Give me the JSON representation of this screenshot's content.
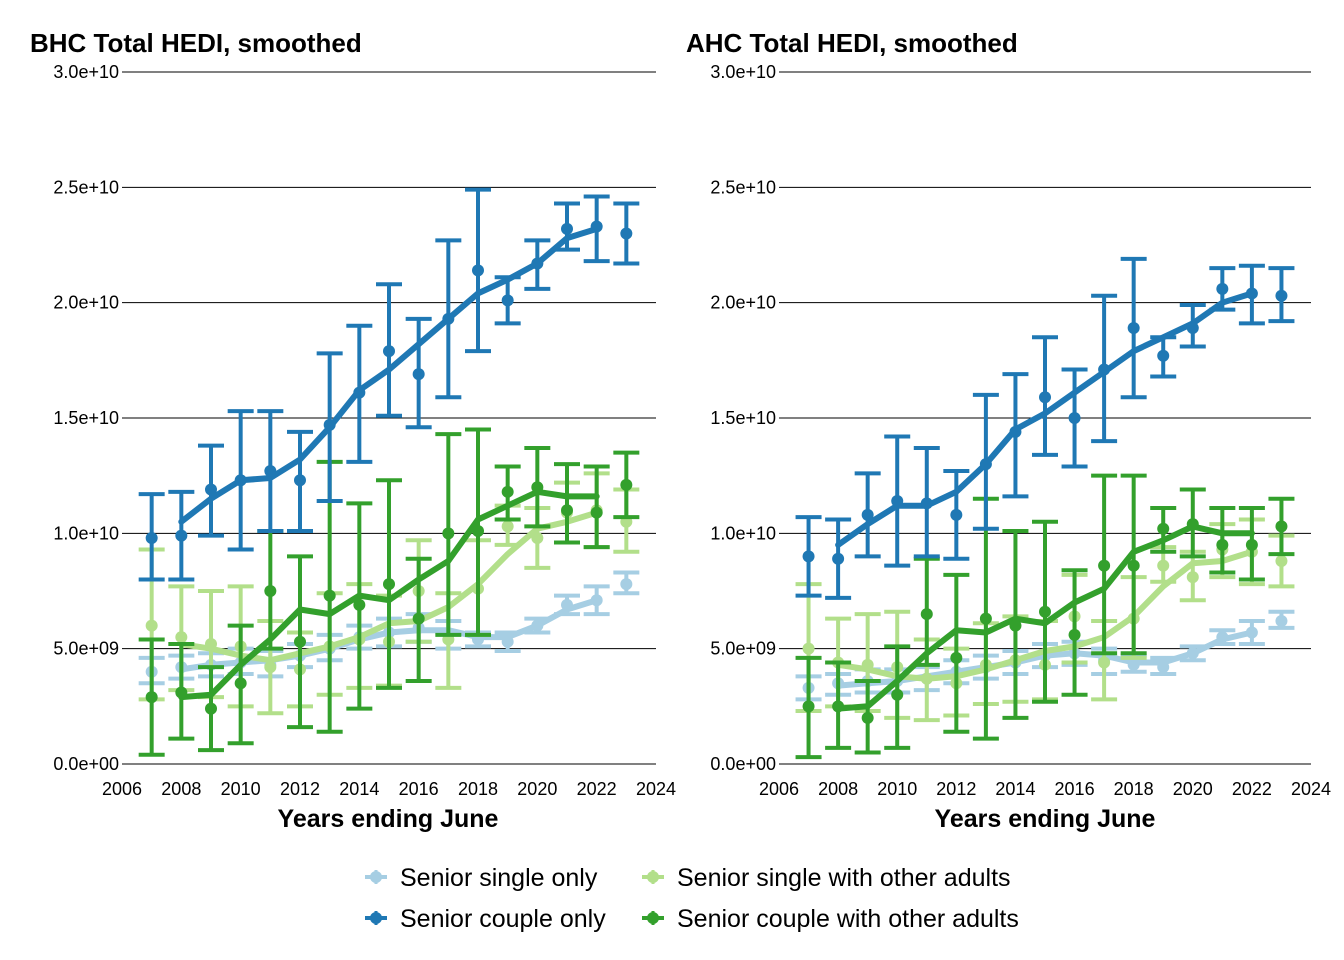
{
  "colors": {
    "single_only": "#a6cee3",
    "couple_only": "#1f78b4",
    "single_with_others": "#b2df8a",
    "couple_with_others": "#33a02c"
  },
  "legend": {
    "items": [
      {
        "key": "single_only",
        "label": "Senior single only"
      },
      {
        "key": "single_with_others",
        "label": "Senior single with other adults"
      },
      {
        "key": "couple_only",
        "label": "Senior couple only"
      },
      {
        "key": "couple_with_others",
        "label": "Senior couple with other adults"
      }
    ]
  },
  "chart_data": [
    {
      "type": "line",
      "title": "BHC Total HEDI, smoothed",
      "xlabel": "Years ending June",
      "ylabel": "",
      "xlim": [
        2006,
        2024
      ],
      "ylim": [
        0,
        30000000000
      ],
      "x_ticks": [
        2006,
        2008,
        2010,
        2012,
        2014,
        2016,
        2018,
        2020,
        2022,
        2024
      ],
      "y_ticks": [
        0,
        5000000000,
        10000000000,
        15000000000,
        20000000000,
        25000000000,
        30000000000
      ],
      "y_tick_labels": [
        "0.0e+00",
        "5.0e+09",
        "1.0e+10",
        "1.5e+10",
        "2.0e+10",
        "2.5e+10",
        "3.0e+10"
      ],
      "grid": "horizontal",
      "x": [
        2007,
        2008,
        2009,
        2010,
        2011,
        2012,
        2013,
        2014,
        2015,
        2016,
        2017,
        2018,
        2019,
        2020,
        2021,
        2022,
        2023
      ],
      "series": [
        {
          "name": "Senior single only",
          "key": "single_only",
          "points": [
            4000000000,
            4200000000,
            4300000000,
            4400000000,
            4300000000,
            4700000000,
            5000000000,
            5500000000,
            5700000000,
            5900000000,
            5600000000,
            5400000000,
            5300000000,
            6000000000,
            6900000000,
            7100000000,
            7800000000
          ],
          "lower": [
            3500000000,
            3700000000,
            3800000000,
            3900000000,
            3800000000,
            4200000000,
            4500000000,
            5000000000,
            5100000000,
            5300000000,
            5000000000,
            5100000000,
            4900000000,
            5700000000,
            6500000000,
            6500000000,
            7400000000
          ],
          "upper": [
            4600000000,
            4700000000,
            4800000000,
            5000000000,
            4900000000,
            5200000000,
            5600000000,
            6000000000,
            6300000000,
            6500000000,
            6200000000,
            5700000000,
            5700000000,
            6300000000,
            7300000000,
            7700000000,
            8300000000
          ],
          "smooth": [
            null,
            4100000000,
            4300000000,
            4400000000,
            4500000000,
            4700000000,
            5000000000,
            5400000000,
            5700000000,
            5800000000,
            5800000000,
            5500000000,
            5500000000,
            6000000000,
            6700000000,
            7100000000,
            null
          ]
        },
        {
          "name": "Senior couple only",
          "key": "couple_only",
          "points": [
            9800000000,
            9900000000,
            11900000000,
            12300000000,
            12700000000,
            12300000000,
            14700000000,
            16100000000,
            17900000000,
            16900000000,
            19300000000,
            21400000000,
            20100000000,
            21700000000,
            23200000000,
            23300000000,
            23000000000
          ],
          "lower": [
            8000000000,
            8000000000,
            9900000000,
            9300000000,
            10100000000,
            10100000000,
            11400000000,
            13100000000,
            15100000000,
            14600000000,
            15900000000,
            17900000000,
            19100000000,
            20600000000,
            22300000000,
            21800000000,
            21700000000
          ],
          "upper": [
            11700000000,
            11800000000,
            13800000000,
            15300000000,
            15300000000,
            14400000000,
            17800000000,
            19000000000,
            20800000000,
            19300000000,
            22700000000,
            24900000000,
            21100000000,
            22700000000,
            24300000000,
            24600000000,
            24300000000
          ],
          "smooth": [
            null,
            10500000000,
            11500000000,
            12300000000,
            12400000000,
            13200000000,
            14600000000,
            16200000000,
            17100000000,
            18200000000,
            19300000000,
            20400000000,
            21000000000,
            21700000000,
            22800000000,
            23200000000,
            null
          ]
        },
        {
          "name": "Senior single with other adults",
          "key": "single_with_others",
          "points": [
            6000000000,
            5500000000,
            5200000000,
            5100000000,
            4200000000,
            4100000000,
            5100000000,
            5400000000,
            5300000000,
            7500000000,
            5400000000,
            7600000000,
            10300000000,
            9800000000,
            10900000000,
            11000000000,
            10500000000
          ],
          "lower": [
            2800000000,
            3200000000,
            2900000000,
            2500000000,
            2200000000,
            2500000000,
            3000000000,
            3300000000,
            3400000000,
            5300000000,
            3300000000,
            5600000000,
            9500000000,
            8500000000,
            9600000000,
            9400000000,
            9200000000
          ],
          "upper": [
            9300000000,
            7700000000,
            7500000000,
            7700000000,
            6200000000,
            5700000000,
            7400000000,
            7800000000,
            7300000000,
            9700000000,
            7400000000,
            9700000000,
            11200000000,
            11100000000,
            12200000000,
            12600000000,
            11900000000
          ],
          "smooth": [
            null,
            5200000000,
            5000000000,
            4700000000,
            4500000000,
            4800000000,
            5100000000,
            5500000000,
            6100000000,
            6200000000,
            6800000000,
            7800000000,
            9100000000,
            10200000000,
            10500000000,
            10900000000,
            null
          ]
        },
        {
          "name": "Senior couple with other adults",
          "key": "couple_with_others",
          "points": [
            2900000000,
            3100000000,
            2400000000,
            3500000000,
            7500000000,
            5300000000,
            7300000000,
            6900000000,
            7800000000,
            6300000000,
            10000000000,
            10100000000,
            11800000000,
            12000000000,
            11000000000,
            10900000000,
            12100000000
          ],
          "lower": [
            400000000,
            1100000000,
            600000000,
            900000000,
            5000000000,
            1600000000,
            1400000000,
            2400000000,
            3300000000,
            3600000000,
            5600000000,
            5600000000,
            10600000000,
            10300000000,
            9600000000,
            9400000000,
            10700000000
          ],
          "upper": [
            5400000000,
            5200000000,
            4200000000,
            6000000000,
            10100000000,
            9000000000,
            13100000000,
            11300000000,
            12300000000,
            8900000000,
            14300000000,
            14500000000,
            12900000000,
            13700000000,
            13000000000,
            12900000000,
            13500000000
          ],
          "smooth": [
            null,
            2900000000,
            3000000000,
            4300000000,
            5400000000,
            6700000000,
            6500000000,
            7300000000,
            7100000000,
            8000000000,
            8800000000,
            10600000000,
            11200000000,
            11800000000,
            11600000000,
            11600000000,
            null
          ]
        }
      ]
    },
    {
      "type": "line",
      "title": "AHC Total HEDI, smoothed",
      "xlabel": "Years ending June",
      "ylabel": "",
      "xlim": [
        2006,
        2024
      ],
      "ylim": [
        0,
        30000000000
      ],
      "x_ticks": [
        2006,
        2008,
        2010,
        2012,
        2014,
        2016,
        2018,
        2020,
        2022,
        2024
      ],
      "y_ticks": [
        0,
        5000000000,
        10000000000,
        15000000000,
        20000000000,
        25000000000,
        30000000000
      ],
      "y_tick_labels": [
        "0.0e+00",
        "5.0e+09",
        "1.0e+10",
        "1.5e+10",
        "2.0e+10",
        "2.5e+10",
        "3.0e+10"
      ],
      "grid": "horizontal",
      "x": [
        2007,
        2008,
        2009,
        2010,
        2011,
        2012,
        2013,
        2014,
        2015,
        2016,
        2017,
        2018,
        2019,
        2020,
        2021,
        2022,
        2023
      ],
      "series": [
        {
          "name": "Senior single only",
          "key": "single_only",
          "points": [
            3300000000,
            3500000000,
            3600000000,
            3600000000,
            3700000000,
            4000000000,
            4200000000,
            4400000000,
            4700000000,
            4800000000,
            4500000000,
            4300000000,
            4200000000,
            4800000000,
            5500000000,
            5700000000,
            6200000000
          ],
          "lower": [
            2800000000,
            3000000000,
            3100000000,
            3100000000,
            3200000000,
            3500000000,
            3700000000,
            3900000000,
            4200000000,
            4300000000,
            3900000000,
            4000000000,
            3900000000,
            4500000000,
            5200000000,
            5200000000,
            5900000000
          ],
          "upper": [
            3800000000,
            3900000000,
            4100000000,
            4100000000,
            4200000000,
            4500000000,
            4700000000,
            4900000000,
            5200000000,
            5300000000,
            5000000000,
            4700000000,
            4600000000,
            5100000000,
            5800000000,
            6200000000,
            6600000000
          ],
          "smooth": [
            null,
            3400000000,
            3500000000,
            3600000000,
            3800000000,
            4000000000,
            4200000000,
            4400000000,
            4700000000,
            4800000000,
            4700000000,
            4400000000,
            4400000000,
            4800000000,
            5400000000,
            5700000000,
            null
          ]
        },
        {
          "name": "Senior couple only",
          "key": "couple_only",
          "points": [
            9000000000,
            8900000000,
            10800000000,
            11400000000,
            11300000000,
            10800000000,
            13000000000,
            14400000000,
            15900000000,
            15000000000,
            17100000000,
            18900000000,
            17700000000,
            18900000000,
            20600000000,
            20400000000,
            20300000000
          ],
          "lower": [
            7300000000,
            7200000000,
            9000000000,
            8600000000,
            9000000000,
            8900000000,
            10200000000,
            11600000000,
            13400000000,
            12900000000,
            14000000000,
            15900000000,
            16800000000,
            18100000000,
            19700000000,
            19100000000,
            19200000000
          ],
          "upper": [
            10700000000,
            10600000000,
            12600000000,
            14200000000,
            13700000000,
            12700000000,
            16000000000,
            16900000000,
            18500000000,
            17100000000,
            20300000000,
            21900000000,
            18500000000,
            19900000000,
            21500000000,
            21600000000,
            21500000000
          ],
          "smooth": [
            null,
            9500000000,
            10400000000,
            11200000000,
            11200000000,
            11800000000,
            13000000000,
            14500000000,
            15200000000,
            16100000000,
            17000000000,
            17900000000,
            18500000000,
            19100000000,
            20000000000,
            20400000000,
            null
          ]
        },
        {
          "name": "Senior single with other adults",
          "key": "single_with_others",
          "points": [
            5000000000,
            4400000000,
            4300000000,
            4200000000,
            3700000000,
            3500000000,
            4300000000,
            4500000000,
            4300000000,
            6400000000,
            4400000000,
            6300000000,
            8600000000,
            8100000000,
            9300000000,
            9200000000,
            8800000000
          ],
          "lower": [
            2300000000,
            2500000000,
            2300000000,
            2000000000,
            1900000000,
            2100000000,
            2600000000,
            2700000000,
            2800000000,
            4400000000,
            2800000000,
            4600000000,
            7900000000,
            7100000000,
            8100000000,
            7800000000,
            7700000000
          ],
          "upper": [
            7800000000,
            6300000000,
            6500000000,
            6600000000,
            5400000000,
            5000000000,
            6100000000,
            6400000000,
            6200000000,
            8200000000,
            6200000000,
            8100000000,
            9400000000,
            9200000000,
            10400000000,
            10600000000,
            9900000000
          ],
          "smooth": [
            null,
            4300000000,
            4100000000,
            3800000000,
            3700000000,
            3800000000,
            4100000000,
            4500000000,
            4900000000,
            5100000000,
            5500000000,
            6400000000,
            7700000000,
            8700000000,
            8800000000,
            9200000000,
            null
          ]
        },
        {
          "name": "Senior couple with other adults",
          "key": "couple_with_others",
          "points": [
            2500000000,
            2500000000,
            2000000000,
            3000000000,
            6500000000,
            4600000000,
            6300000000,
            6000000000,
            6600000000,
            5600000000,
            8600000000,
            8600000000,
            10200000000,
            10400000000,
            9500000000,
            9500000000,
            10300000000
          ],
          "lower": [
            300000000,
            700000000,
            500000000,
            700000000,
            4300000000,
            1400000000,
            1100000000,
            2000000000,
            2700000000,
            3000000000,
            4800000000,
            4800000000,
            9200000000,
            9000000000,
            8300000000,
            8000000000,
            9100000000
          ],
          "upper": [
            4600000000,
            4400000000,
            3600000000,
            5100000000,
            8900000000,
            8200000000,
            11500000000,
            10100000000,
            10500000000,
            8400000000,
            12500000000,
            12500000000,
            11100000000,
            11900000000,
            11100000000,
            11100000000,
            11500000000
          ],
          "smooth": [
            null,
            2400000000,
            2500000000,
            3600000000,
            4800000000,
            5800000000,
            5700000000,
            6300000000,
            6100000000,
            7000000000,
            7600000000,
            9200000000,
            9700000000,
            10300000000,
            10000000000,
            10000000000,
            null
          ]
        }
      ]
    }
  ]
}
